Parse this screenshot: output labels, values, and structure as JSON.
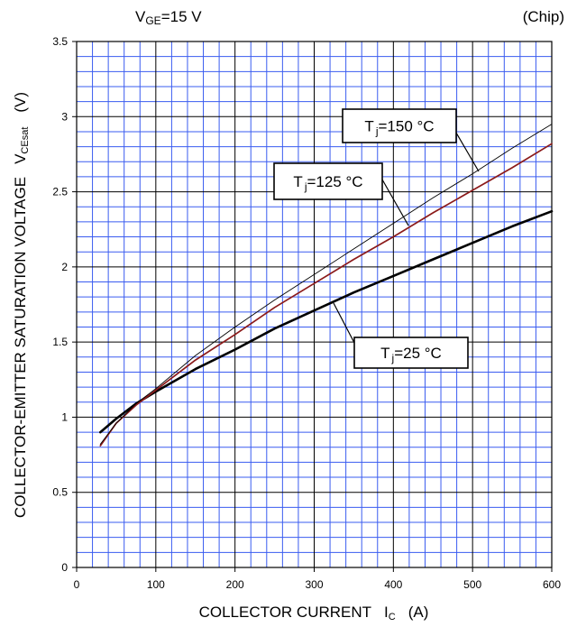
{
  "header": {
    "condition_main": "V",
    "condition_sub": "GE",
    "condition_rest": "=15 V",
    "note": "(Chip)"
  },
  "axes": {
    "ylabel_main": "COLLECTOR-EMITTER SATURATION VOLTAGE",
    "ylabel_symbol": "V",
    "ylabel_symbol_sub": "CEsat",
    "ylabel_unit": "(V)",
    "xlabel_main": "COLLECTOR CURRENT",
    "xlabel_symbol": "I",
    "xlabel_symbol_sub": "C",
    "xlabel_unit": "(A)"
  },
  "chart_data": {
    "type": "line",
    "xlim": [
      0,
      600
    ],
    "ylim": [
      0,
      3.5
    ],
    "x_ticks": [
      0,
      100,
      200,
      300,
      400,
      500,
      600
    ],
    "y_ticks": [
      0,
      0.5,
      1,
      1.5,
      2,
      2.5,
      3,
      3.5
    ],
    "x_tick_labels": [
      "0",
      "100",
      "200",
      "300",
      "400",
      "500",
      "600"
    ],
    "y_tick_labels": [
      "0",
      "0.5",
      "1",
      "1.5",
      "2",
      "2.5",
      "3",
      "3.5"
    ],
    "grid": true,
    "series": [
      {
        "name": "Tj=25 °C",
        "label_main": "T",
        "label_sub": "j",
        "label_rest": "=25 °C",
        "color": "#000000",
        "x": [
          30,
          50,
          75,
          100,
          150,
          200,
          250,
          300,
          350,
          400,
          450,
          500,
          550,
          600
        ],
        "y": [
          0.9,
          0.99,
          1.09,
          1.17,
          1.32,
          1.45,
          1.59,
          1.71,
          1.83,
          1.94,
          2.05,
          2.16,
          2.27,
          2.37
        ]
      },
      {
        "name": "Tj=125 °C",
        "label_main": "T",
        "label_sub": "j",
        "label_rest": "=125 °C",
        "color": "#8b1a1a",
        "x": [
          30,
          50,
          75,
          100,
          150,
          200,
          250,
          300,
          350,
          400,
          450,
          500,
          550,
          600
        ],
        "y": [
          0.81,
          0.96,
          1.08,
          1.18,
          1.38,
          1.55,
          1.73,
          1.89,
          2.05,
          2.2,
          2.36,
          2.51,
          2.66,
          2.82
        ]
      },
      {
        "name": "Tj=150 °C",
        "label_main": "T",
        "label_sub": "j",
        "label_rest": "=150 °C",
        "color": "#000000",
        "x": [
          30,
          50,
          75,
          100,
          150,
          200,
          250,
          300,
          350,
          400,
          450,
          500,
          550,
          600
        ],
        "y": [
          0.82,
          0.96,
          1.09,
          1.19,
          1.41,
          1.6,
          1.78,
          1.95,
          2.12,
          2.29,
          2.46,
          2.62,
          2.79,
          2.95
        ]
      }
    ]
  }
}
